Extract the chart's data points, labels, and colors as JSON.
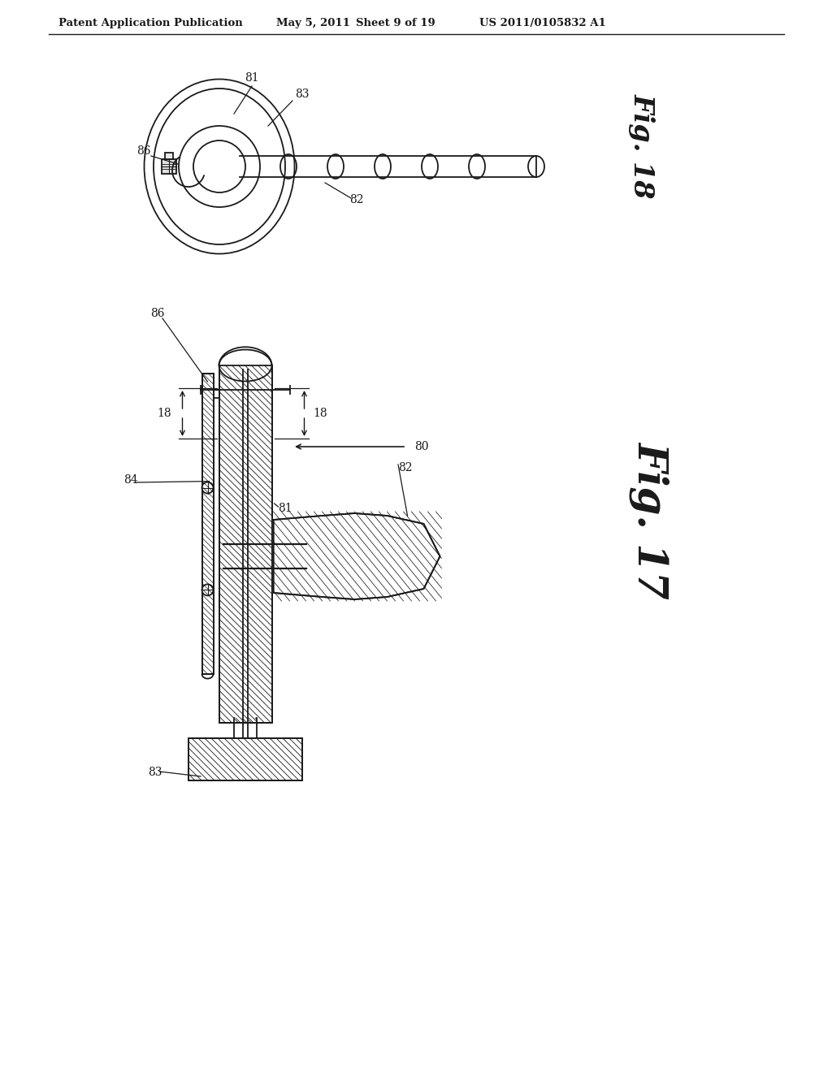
{
  "bg_color": "#ffffff",
  "line_color": "#1a1a1a",
  "header_text": "Patent Application Publication",
  "header_date": "May 5, 2011",
  "header_sheet": "Sheet 9 of 19",
  "header_patent": "US 2011/0105832 A1",
  "fig18_label": "Fig. 18",
  "fig17_label": "Fig. 17"
}
